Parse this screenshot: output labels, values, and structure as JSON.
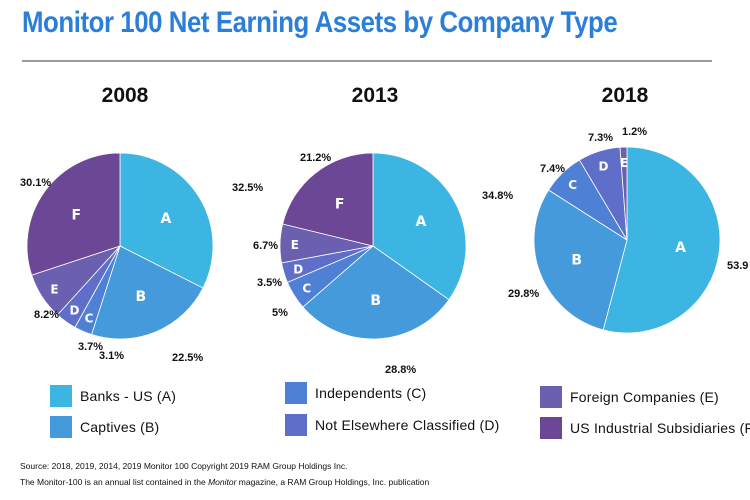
{
  "title": "Monitor 100 Net Earning Assets by Company Type",
  "colors": {
    "A": "#3db5e2",
    "B": "#449ada",
    "C": "#4e81d5",
    "D": "#5f6ec8",
    "E": "#6b60b0",
    "F": "#6b4796"
  },
  "chart_data": [
    {
      "type": "pie",
      "title": "2008",
      "slices": [
        {
          "label": "A",
          "value": 32.5,
          "display": "32.5%"
        },
        {
          "label": "B",
          "value": 22.5,
          "display": "22.5%"
        },
        {
          "label": "C",
          "value": 3.1,
          "display": "3.1%"
        },
        {
          "label": "D",
          "value": 3.7,
          "display": "3.7%"
        },
        {
          "label": "E",
          "value": 8.2,
          "display": "8.2%"
        },
        {
          "label": "F",
          "value": 30.1,
          "display": "30.1%"
        }
      ]
    },
    {
      "type": "pie",
      "title": "2013",
      "slices": [
        {
          "label": "A",
          "value": 34.8,
          "display": "34.8%"
        },
        {
          "label": "B",
          "value": 28.8,
          "display": "28.8%"
        },
        {
          "label": "C",
          "value": 5,
          "display": "5%"
        },
        {
          "label": "D",
          "value": 3.5,
          "display": "3.5%"
        },
        {
          "label": "E",
          "value": 6.7,
          "display": "6.7%"
        },
        {
          "label": "F",
          "value": 21.2,
          "display": "21.2%"
        }
      ]
    },
    {
      "type": "pie",
      "title": "2018",
      "slices": [
        {
          "label": "A",
          "value": 53.9,
          "display": "53.9"
        },
        {
          "label": "B",
          "value": 29.8,
          "display": "29.8%"
        },
        {
          "label": "C",
          "value": 7.4,
          "display": "7.4%"
        },
        {
          "label": "D",
          "value": 7.3,
          "display": "7.3%"
        },
        {
          "label": "E",
          "value": 1.2,
          "display": "1.2%"
        },
        {
          "label": "F",
          "value": 0,
          "display": ""
        }
      ]
    }
  ],
  "legend": [
    {
      "key": "A",
      "label": "Banks - US (A)"
    },
    {
      "key": "B",
      "label": "Captives (B)"
    },
    {
      "key": "C",
      "label": "Independents (C)"
    },
    {
      "key": "D",
      "label": "Not Elsewhere Classified (D)"
    },
    {
      "key": "E",
      "label": "Foreign Companies (E)"
    },
    {
      "key": "F",
      "label": "US Industrial Subsidiaries (F)"
    }
  ],
  "footer": {
    "line1": "Source: 2018, 2019, 2014, 2019 Monitor 100 Copyright 2019 RAM Group Holdings Inc.",
    "line2_before": "The Monitor-100 is an annual list contained in the ",
    "line2_em": "Monitor",
    "line2_after": " magazine, a RAM Group Holdings, Inc. publication"
  }
}
